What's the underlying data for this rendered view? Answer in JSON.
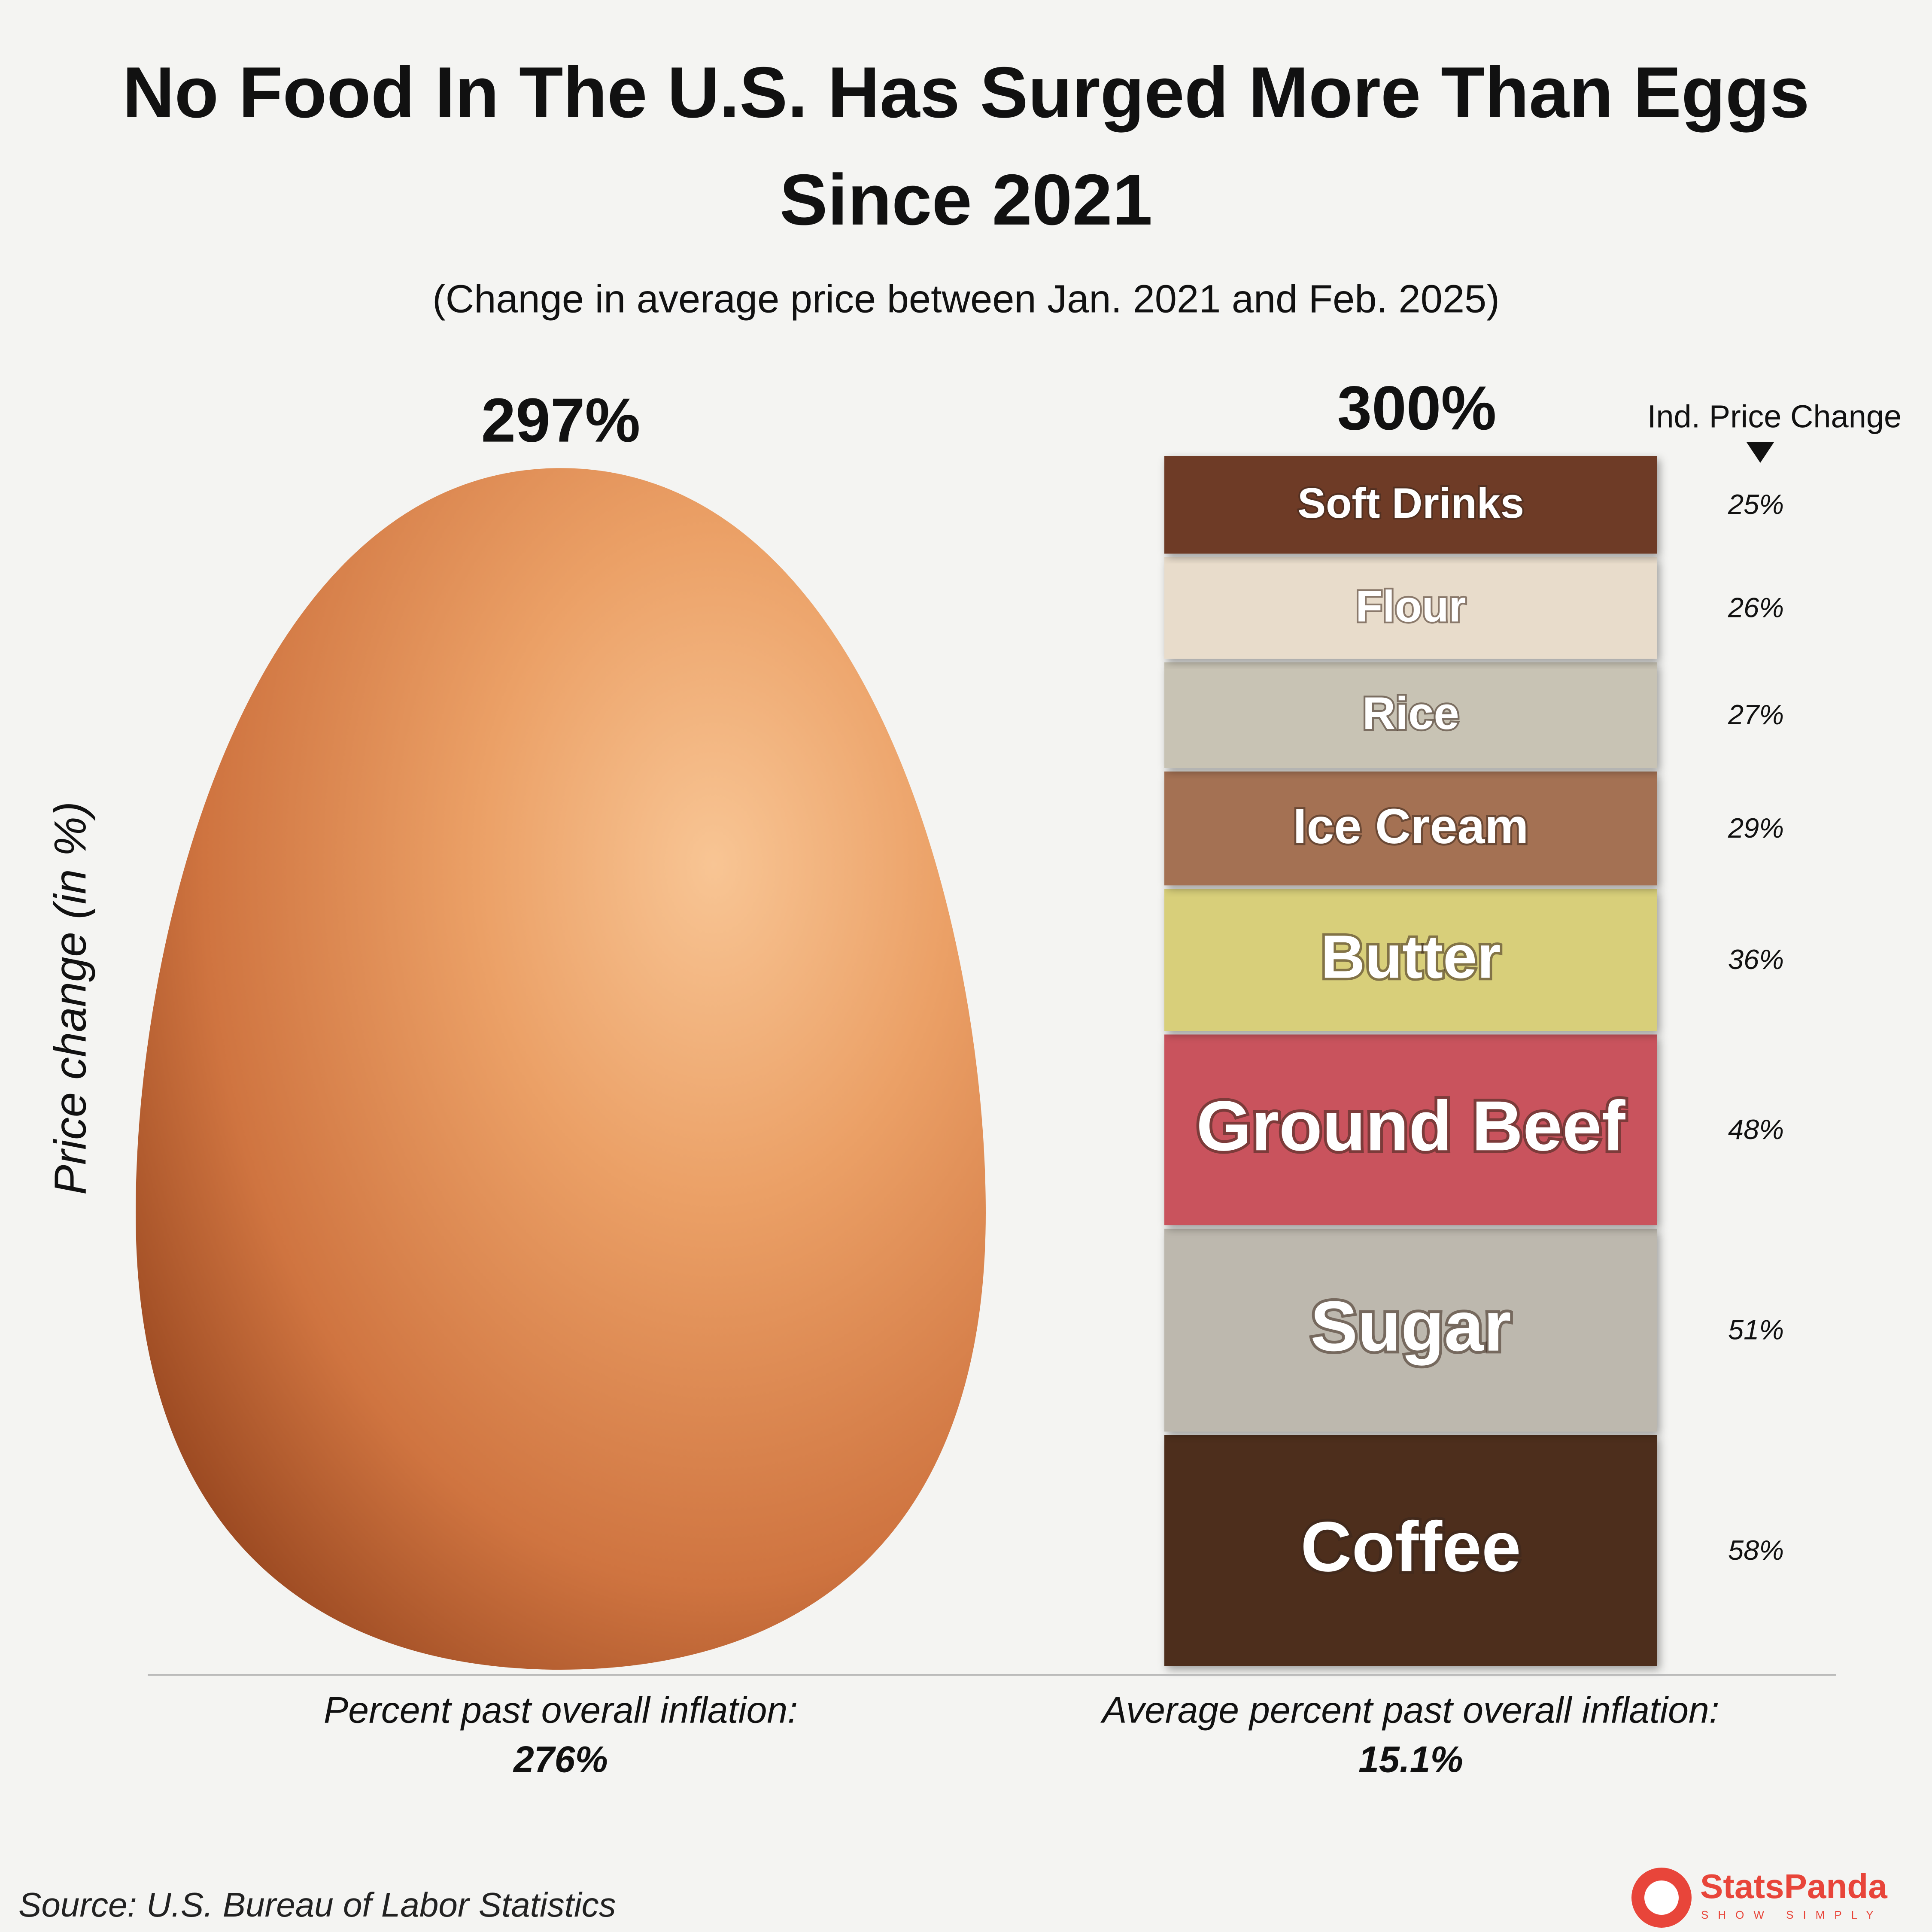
{
  "chart_data": {
    "type": "stacked_comparison",
    "title": "No Food In The U.S. Has Surged More Than Eggs Since 2021",
    "subtitle": "(Change in average price between Jan. 2021 and Feb. 2025)",
    "y_label": "Price change (in %)",
    "ylim": [
      0,
      300
    ],
    "single": {
      "value": 297,
      "value_label": "297%",
      "color": "#e08a50"
    },
    "stack": {
      "categories": [
        "Coffee",
        "Sugar",
        "Ground Beef",
        "Butter",
        "Ice Cream",
        "Rice",
        "Flour",
        "Soft Drinks"
      ],
      "values": [
        58,
        51,
        48,
        36,
        29,
        27,
        26,
        25
      ],
      "value_labels": [
        "58%",
        "51%",
        "48%",
        "36%",
        "29%",
        "27%",
        "26%",
        "25%"
      ],
      "colors": [
        "#4e2f1e",
        "#bdb8ae",
        "#c9525d",
        "#d8cf7a",
        "#a47152",
        "#c8c3b4",
        "#e8dccb",
        "#6e3a26"
      ],
      "total": 300,
      "total_label": "300%",
      "value_header": "Ind. Price Change"
    },
    "notes": [
      {
        "label": "Percent past overall inflation:",
        "value": 276,
        "value_label": "276%"
      },
      {
        "label": "Average percent past overall inflation:",
        "value": 15.1,
        "value_label": "15.1%"
      }
    ],
    "source": "Source: U.S. Bureau of Labor Statistics"
  },
  "logo": {
    "name": "StatsPanda",
    "tagline": "SHOW SIMPLY"
  }
}
